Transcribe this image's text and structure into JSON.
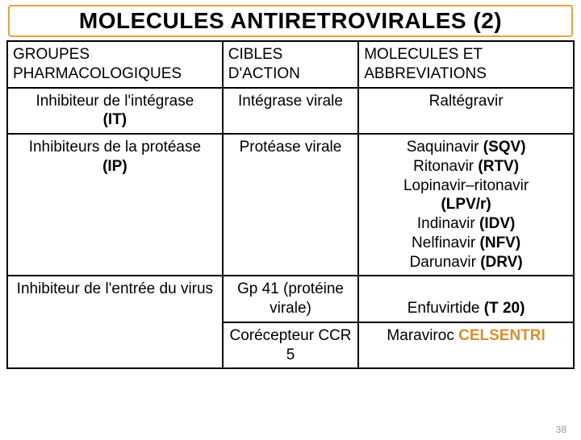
{
  "title": "MOLECULES ANTIRETROVIRALES (2)",
  "columns": {
    "c1": "GROUPES PHARMACOLOGIQUES",
    "c2": "CIBLES D'ACTION",
    "c3": "MOLECULES ET ABBREVIATIONS"
  },
  "rows": {
    "r1": {
      "group_line1": "Inhibiteur de l'intégrase",
      "group_abbr": "(IT)",
      "target": "Intégrase virale",
      "mol": "Raltégravir"
    },
    "r2": {
      "group_line1": "Inhibiteurs de la protéase",
      "group_abbr": "(IP)",
      "target": "Protéase virale",
      "m1a": "Saquinavir ",
      "m1b": "(SQV)",
      "m2a": "Ritonavir ",
      "m2b": "(RTV)",
      "m3a": "Lopinavir–ritonavir",
      "m3b": "(LPV/r)",
      "m4a": "Indinavir ",
      "m4b": "(IDV)",
      "m5a": "Nelfinavir ",
      "m5b": "(NFV)",
      "m6a": "Darunavir ",
      "m6b": "(DRV)"
    },
    "r3": {
      "group": "Inhibiteur de l'entrée du virus",
      "target": "Gp 41 (protéine virale)",
      "mol_a": "Enfuvirtide ",
      "mol_b": "(T 20)"
    },
    "r4": {
      "target": "Corécepteur CCR 5",
      "mol_a": "Maraviroc ",
      "mol_b": "CELSENTRI"
    }
  },
  "colors": {
    "title_border": "#e8a23a",
    "abbr_bold": "#000000",
    "brand_color": "#d98f2e"
  },
  "page_number": "38"
}
